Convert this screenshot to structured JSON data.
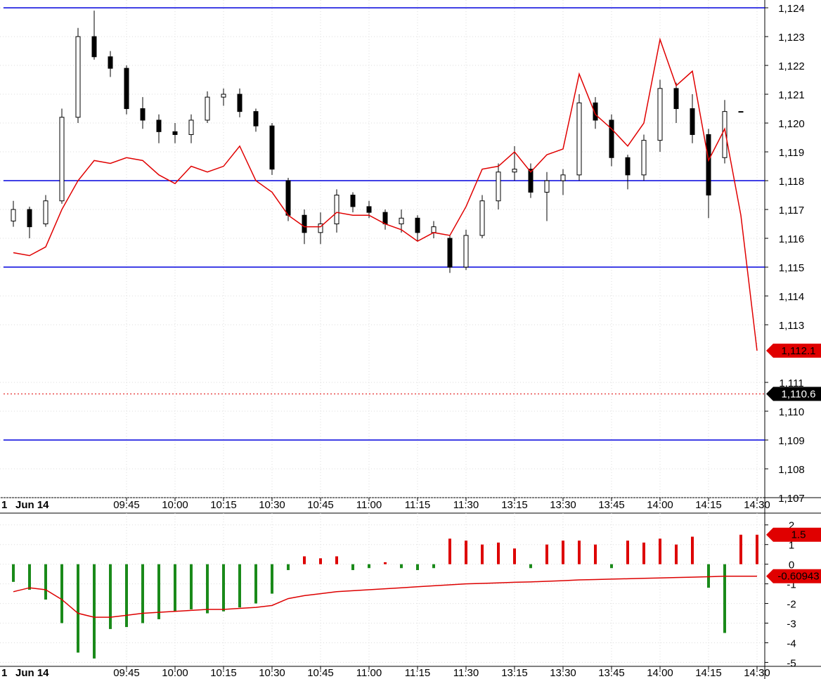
{
  "chart_data": [
    {
      "type": "candlestick",
      "x_left_label": "1",
      "date_label": "Jun 14",
      "x": [
        "09:10",
        "09:15",
        "09:20",
        "09:25",
        "09:30",
        "09:35",
        "09:40",
        "09:45",
        "09:50",
        "09:55",
        "10:00",
        "10:05",
        "10:10",
        "10:15",
        "10:20",
        "10:25",
        "10:30",
        "10:35",
        "10:40",
        "10:45",
        "10:50",
        "10:55",
        "11:00",
        "11:05",
        "11:10",
        "11:15",
        "11:20",
        "11:25",
        "11:30",
        "13:05",
        "13:10",
        "13:15",
        "13:20",
        "13:25",
        "13:30",
        "13:35",
        "13:40",
        "13:45",
        "13:50",
        "13:55",
        "14:00",
        "14:05",
        "14:10",
        "14:15",
        "14:20",
        "14:25",
        "14:30"
      ],
      "open": [
        1116.6,
        1117.0,
        1116.5,
        1117.3,
        1120.2,
        1123.0,
        1122.3,
        1121.9,
        1120.5,
        1120.1,
        1119.7,
        1119.6,
        1120.1,
        1120.9,
        1121.0,
        1120.4,
        1119.9,
        1118.0,
        1116.8,
        1116.2,
        1116.5,
        1117.5,
        1117.1,
        1116.9,
        1116.5,
        1116.7,
        1116.2,
        1116.0,
        1115.0,
        1116.1,
        1117.3,
        1118.3,
        1118.4,
        1117.6,
        1118.0,
        1118.2,
        1120.7,
        1120.1,
        1118.8,
        1118.2,
        1119.4,
        1121.2,
        1120.5,
        1119.6,
        1118.8,
        1120.4,
        null
      ],
      "high": [
        1117.3,
        1117.1,
        1117.5,
        1120.5,
        1123.3,
        1123.9,
        1122.5,
        1122.0,
        1120.9,
        1120.3,
        1120.0,
        1120.3,
        1121.1,
        1121.2,
        1121.2,
        1120.5,
        1120.0,
        1118.1,
        1117.0,
        1116.9,
        1117.7,
        1117.6,
        1117.3,
        1117.0,
        1117.0,
        1116.8,
        1116.6,
        1116.1,
        1116.3,
        1117.5,
        1118.6,
        1119.2,
        1118.6,
        1118.3,
        1118.4,
        1121.0,
        1120.9,
        1120.3,
        1118.9,
        1119.6,
        1121.5,
        1121.4,
        1121.0,
        1119.8,
        1120.8,
        1120.4,
        null
      ],
      "low": [
        1116.4,
        1116.0,
        1116.4,
        1117.2,
        1120.0,
        1122.2,
        1121.6,
        1120.3,
        1119.8,
        1119.3,
        1119.3,
        1119.3,
        1120.0,
        1120.6,
        1120.2,
        1119.7,
        1118.2,
        1116.6,
        1115.8,
        1115.8,
        1116.2,
        1116.9,
        1116.7,
        1116.3,
        1116.2,
        1115.9,
        1116.0,
        1114.8,
        1114.9,
        1116.0,
        1117.0,
        1118.0,
        1117.4,
        1116.6,
        1117.5,
        1118.0,
        1119.8,
        1118.5,
        1117.7,
        1118.0,
        1119.0,
        1120.0,
        1119.3,
        1116.7,
        1118.6,
        1120.4,
        null
      ],
      "close": [
        1117.0,
        1116.4,
        1117.3,
        1120.2,
        1123.0,
        1122.3,
        1121.9,
        1120.5,
        1120.1,
        1119.7,
        1119.6,
        1120.1,
        1120.9,
        1121.0,
        1120.4,
        1119.9,
        1118.4,
        1116.8,
        1116.2,
        1116.5,
        1117.5,
        1117.1,
        1116.9,
        1116.5,
        1116.7,
        1116.2,
        1116.4,
        1115.0,
        1116.1,
        1117.3,
        1118.3,
        1118.4,
        1117.6,
        1118.0,
        1118.2,
        1120.7,
        1120.1,
        1118.8,
        1118.2,
        1119.4,
        1121.2,
        1120.5,
        1119.6,
        1117.5,
        1120.4,
        1120.4,
        null
      ],
      "overlay": {
        "color": "#e00000",
        "values": [
          1115.5,
          1115.4,
          1115.7,
          1117.0,
          1118.0,
          1118.7,
          1118.6,
          1118.8,
          1118.7,
          1118.2,
          1117.9,
          1118.5,
          1118.3,
          1118.5,
          1119.2,
          1118.0,
          1117.6,
          1116.8,
          1116.4,
          1116.4,
          1116.9,
          1116.8,
          1116.8,
          1116.5,
          1116.3,
          1115.9,
          1116.2,
          1116.1,
          1117.1,
          1118.4,
          1118.5,
          1119.0,
          1118.3,
          1118.9,
          1119.1,
          1121.7,
          1120.3,
          1119.8,
          1119.2,
          1120.0,
          1122.9,
          1121.3,
          1121.8,
          1118.7,
          1119.8,
          1116.8,
          1112.1
        ]
      },
      "hlines": [
        1124,
        1118,
        1115,
        1109
      ],
      "hline_color": "#0000dd",
      "dotted_line": 1110.6,
      "dotted_color": "#e00000",
      "tags": [
        {
          "value": 1112.1,
          "label": "1,112.1",
          "color": "#e00000"
        },
        {
          "value": 1110.6,
          "label": "1,110.6",
          "color": "#000000"
        }
      ],
      "ylim": [
        1107,
        1124.27
      ],
      "yticks": [
        {
          "value": 1124,
          "label": "1,124"
        },
        {
          "value": 1123,
          "label": "1,123"
        },
        {
          "value": 1122,
          "label": "1,122"
        },
        {
          "value": 1121,
          "label": "1,121"
        },
        {
          "value": 1120,
          "label": "1,120"
        },
        {
          "value": 1119,
          "label": "1,119"
        },
        {
          "value": 1118,
          "label": "1,118"
        },
        {
          "value": 1117,
          "label": "1,117"
        },
        {
          "value": 1116,
          "label": "1,116"
        },
        {
          "value": 1115,
          "label": "1,115"
        },
        {
          "value": 1114,
          "label": "1,114"
        },
        {
          "value": 1113,
          "label": "1,113"
        },
        {
          "value": 1111,
          "label": "1,111"
        },
        {
          "value": 1110,
          "label": "1,110"
        },
        {
          "value": 1109,
          "label": "1,109"
        },
        {
          "value": 1108,
          "label": "1,108"
        },
        {
          "value": 1107,
          "label": "1,107"
        }
      ],
      "xticks": [
        "09:45",
        "10:00",
        "10:15",
        "10:30",
        "10:45",
        "11:00",
        "11:15",
        "11:30",
        "13:15",
        "13:30",
        "13:45",
        "14:00",
        "14:15",
        "14:30"
      ],
      "grid": true
    },
    {
      "type": "bar",
      "x_left_label": "1",
      "date_label": "Jun 14",
      "x": [
        "09:10",
        "09:15",
        "09:20",
        "09:25",
        "09:30",
        "09:35",
        "09:40",
        "09:45",
        "09:50",
        "09:55",
        "10:00",
        "10:05",
        "10:10",
        "10:15",
        "10:20",
        "10:25",
        "10:30",
        "10:35",
        "10:40",
        "10:45",
        "10:50",
        "10:55",
        "11:00",
        "11:05",
        "11:10",
        "11:15",
        "11:20",
        "11:25",
        "11:30",
        "13:05",
        "13:10",
        "13:15",
        "13:20",
        "13:25",
        "13:30",
        "13:35",
        "13:40",
        "13:45",
        "13:50",
        "13:55",
        "14:00",
        "14:05",
        "14:10",
        "14:15",
        "14:20",
        "14:25",
        "14:30"
      ],
      "values": [
        -0.9,
        -1.3,
        -1.8,
        -3.0,
        -4.5,
        -4.8,
        -3.3,
        -3.2,
        -3.0,
        -2.8,
        -2.4,
        -2.3,
        -2.5,
        -2.4,
        -2.2,
        -2.0,
        -1.5,
        -0.3,
        0.4,
        0.3,
        0.4,
        -0.3,
        -0.2,
        0.1,
        -0.2,
        -0.3,
        -0.2,
        1.3,
        1.2,
        1.0,
        1.1,
        0.8,
        -0.2,
        1.0,
        1.2,
        1.2,
        1.0,
        -0.2,
        1.2,
        1.1,
        1.3,
        1.0,
        1.4,
        -1.2,
        -3.5,
        1.5,
        1.5
      ],
      "up_color": "#dd0000",
      "down_color": "#1a8a1a",
      "overlay": {
        "color": "#dd0000",
        "values": [
          -1.4,
          -1.2,
          -1.3,
          -1.8,
          -2.5,
          -2.7,
          -2.7,
          -2.6,
          -2.5,
          -2.45,
          -2.4,
          -2.35,
          -2.3,
          -2.3,
          -2.25,
          -2.2,
          -2.1,
          -1.75,
          -1.6,
          -1.5,
          -1.4,
          -1.35,
          -1.3,
          -1.25,
          -1.2,
          -1.15,
          -1.1,
          -1.05,
          -1.0,
          -0.98,
          -0.95,
          -0.92,
          -0.9,
          -0.87,
          -0.84,
          -0.8,
          -0.78,
          -0.76,
          -0.74,
          -0.72,
          -0.7,
          -0.68,
          -0.66,
          -0.64,
          -0.61,
          -0.61,
          -0.61
        ]
      },
      "tags": [
        {
          "value": 1.5,
          "label": "1.5",
          "color": "#e00000"
        },
        {
          "value": -0.60943,
          "label": "-0.60943",
          "color": "#e00000"
        }
      ],
      "ylim": [
        -5.2,
        2.6
      ],
      "yticks": [
        2,
        1,
        0,
        -1,
        -2,
        -3,
        -4,
        -5
      ],
      "xticks": [
        "09:45",
        "10:00",
        "10:15",
        "10:30",
        "10:45",
        "11:00",
        "11:15",
        "11:30",
        "13:15",
        "13:30",
        "13:45",
        "14:00",
        "14:15",
        "14:30"
      ],
      "grid": true
    }
  ]
}
